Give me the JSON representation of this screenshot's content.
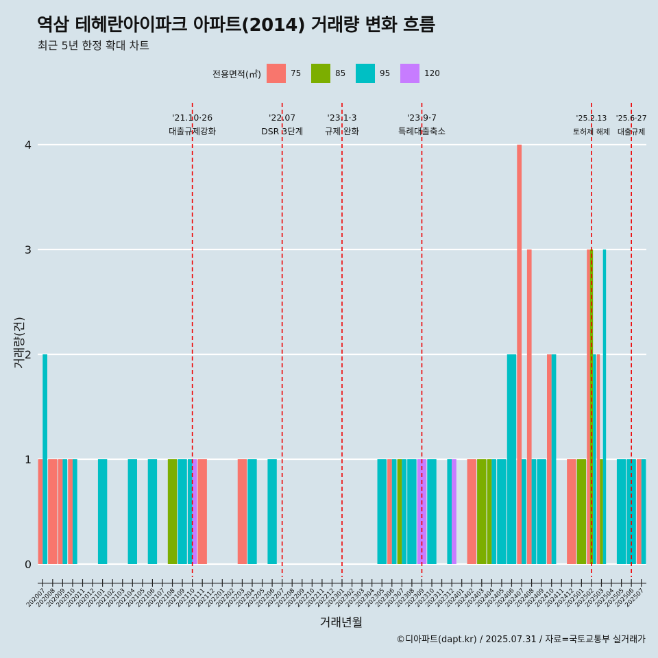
{
  "header": {
    "title": "역삼 테헤란아이파크 아파트(2014) 거래량 변화 흐름",
    "subtitle": "최근 5년 한정 확대 차트"
  },
  "legend": {
    "title": "전용면적(㎡)",
    "items": [
      {
        "label": "75",
        "color": "#F8766D"
      },
      {
        "label": "85",
        "color": "#7CAE00"
      },
      {
        "label": "95",
        "color": "#00BFC4"
      },
      {
        "label": "120",
        "color": "#C77CFF"
      }
    ]
  },
  "caption": "©디아파트(dapt.kr) / 2025.07.31 / 자료=국토교통부 실거래가",
  "chart_data": {
    "type": "bar",
    "xlabel": "거래년월",
    "ylabel": "거래량(건)",
    "ylim": [
      0,
      4
    ],
    "yticks": [
      0,
      1,
      2,
      3,
      4
    ],
    "grid": true,
    "categories": [
      "202007",
      "202008",
      "202009",
      "202010",
      "202011",
      "202012",
      "202101",
      "202102",
      "202103",
      "202104",
      "202105",
      "202106",
      "202107",
      "202108",
      "202109",
      "202110",
      "202111",
      "202112",
      "202201",
      "202202",
      "202203",
      "202204",
      "202205",
      "202206",
      "202207",
      "202208",
      "202209",
      "202210",
      "202211",
      "202212",
      "202301",
      "202302",
      "202303",
      "202304",
      "202305",
      "202306",
      "202307",
      "202308",
      "202309",
      "202310",
      "202311",
      "202312",
      "202401",
      "202402",
      "202403",
      "202404",
      "202405",
      "202406",
      "202407",
      "202408",
      "202409",
      "202410",
      "202411",
      "202412",
      "202501",
      "202502",
      "202503",
      "202504",
      "202505",
      "202506",
      "202507"
    ],
    "series": [
      {
        "name": "75",
        "color": "#F8766D",
        "values": [
          1,
          1,
          1,
          1,
          0,
          0,
          0,
          0,
          0,
          0,
          0,
          0,
          0,
          0,
          0,
          0,
          1,
          0,
          0,
          0,
          1,
          0,
          0,
          0,
          0,
          0,
          0,
          0,
          0,
          0,
          0,
          0,
          0,
          0,
          0,
          1,
          0,
          0,
          0,
          0,
          0,
          0,
          0,
          1,
          0,
          0,
          0,
          0,
          4,
          3,
          0,
          2,
          0,
          1,
          0,
          3,
          2,
          0,
          0,
          0,
          1
        ]
      },
      {
        "name": "85",
        "color": "#7CAE00",
        "values": [
          0,
          0,
          0,
          0,
          0,
          0,
          0,
          0,
          0,
          0,
          0,
          0,
          0,
          1,
          0,
          0,
          0,
          0,
          0,
          0,
          0,
          0,
          0,
          0,
          0,
          0,
          0,
          0,
          0,
          0,
          0,
          0,
          0,
          0,
          0,
          0,
          1,
          0,
          0,
          0,
          0,
          0,
          0,
          0,
          1,
          1,
          0,
          0,
          0,
          0,
          0,
          0,
          0,
          0,
          1,
          3,
          1,
          0,
          0,
          0,
          0
        ]
      },
      {
        "name": "95",
        "color": "#00BFC4",
        "values": [
          2,
          0,
          1,
          1,
          0,
          0,
          1,
          0,
          0,
          1,
          0,
          1,
          0,
          0,
          1,
          1,
          0,
          0,
          0,
          0,
          0,
          1,
          0,
          1,
          0,
          0,
          0,
          0,
          0,
          0,
          0,
          0,
          0,
          0,
          1,
          1,
          1,
          1,
          0,
          1,
          0,
          1,
          0,
          0,
          0,
          1,
          1,
          2,
          1,
          1,
          1,
          2,
          0,
          0,
          0,
          2,
          3,
          0,
          1,
          1,
          1
        ]
      },
      {
        "name": "120",
        "color": "#C77CFF",
        "values": [
          0,
          0,
          0,
          0,
          0,
          0,
          0,
          0,
          0,
          0,
          0,
          0,
          0,
          0,
          0,
          1,
          0,
          0,
          0,
          0,
          0,
          0,
          0,
          0,
          0,
          0,
          0,
          0,
          0,
          0,
          0,
          0,
          0,
          0,
          0,
          0,
          0,
          0,
          1,
          0,
          0,
          1,
          0,
          0,
          0,
          0,
          0,
          0,
          0,
          0,
          0,
          0,
          0,
          0,
          0,
          0,
          0,
          0,
          0,
          0,
          0
        ]
      }
    ],
    "events": [
      {
        "at": "202110",
        "date": "'21.10·26",
        "label": "대출규제강화"
      },
      {
        "at": "202207",
        "date": "'22.07",
        "label": "DSR 3단계"
      },
      {
        "at": "202301",
        "date": "'23.1·3",
        "label": "규제 완화"
      },
      {
        "at": "202309",
        "date": "'23.9·7",
        "label": "특례대출축소"
      },
      {
        "at": "202502",
        "date": "'25.2.13",
        "label": "토허제 해제"
      },
      {
        "at": "202506",
        "date": "'25.6·27",
        "label": "대출규제"
      }
    ]
  }
}
